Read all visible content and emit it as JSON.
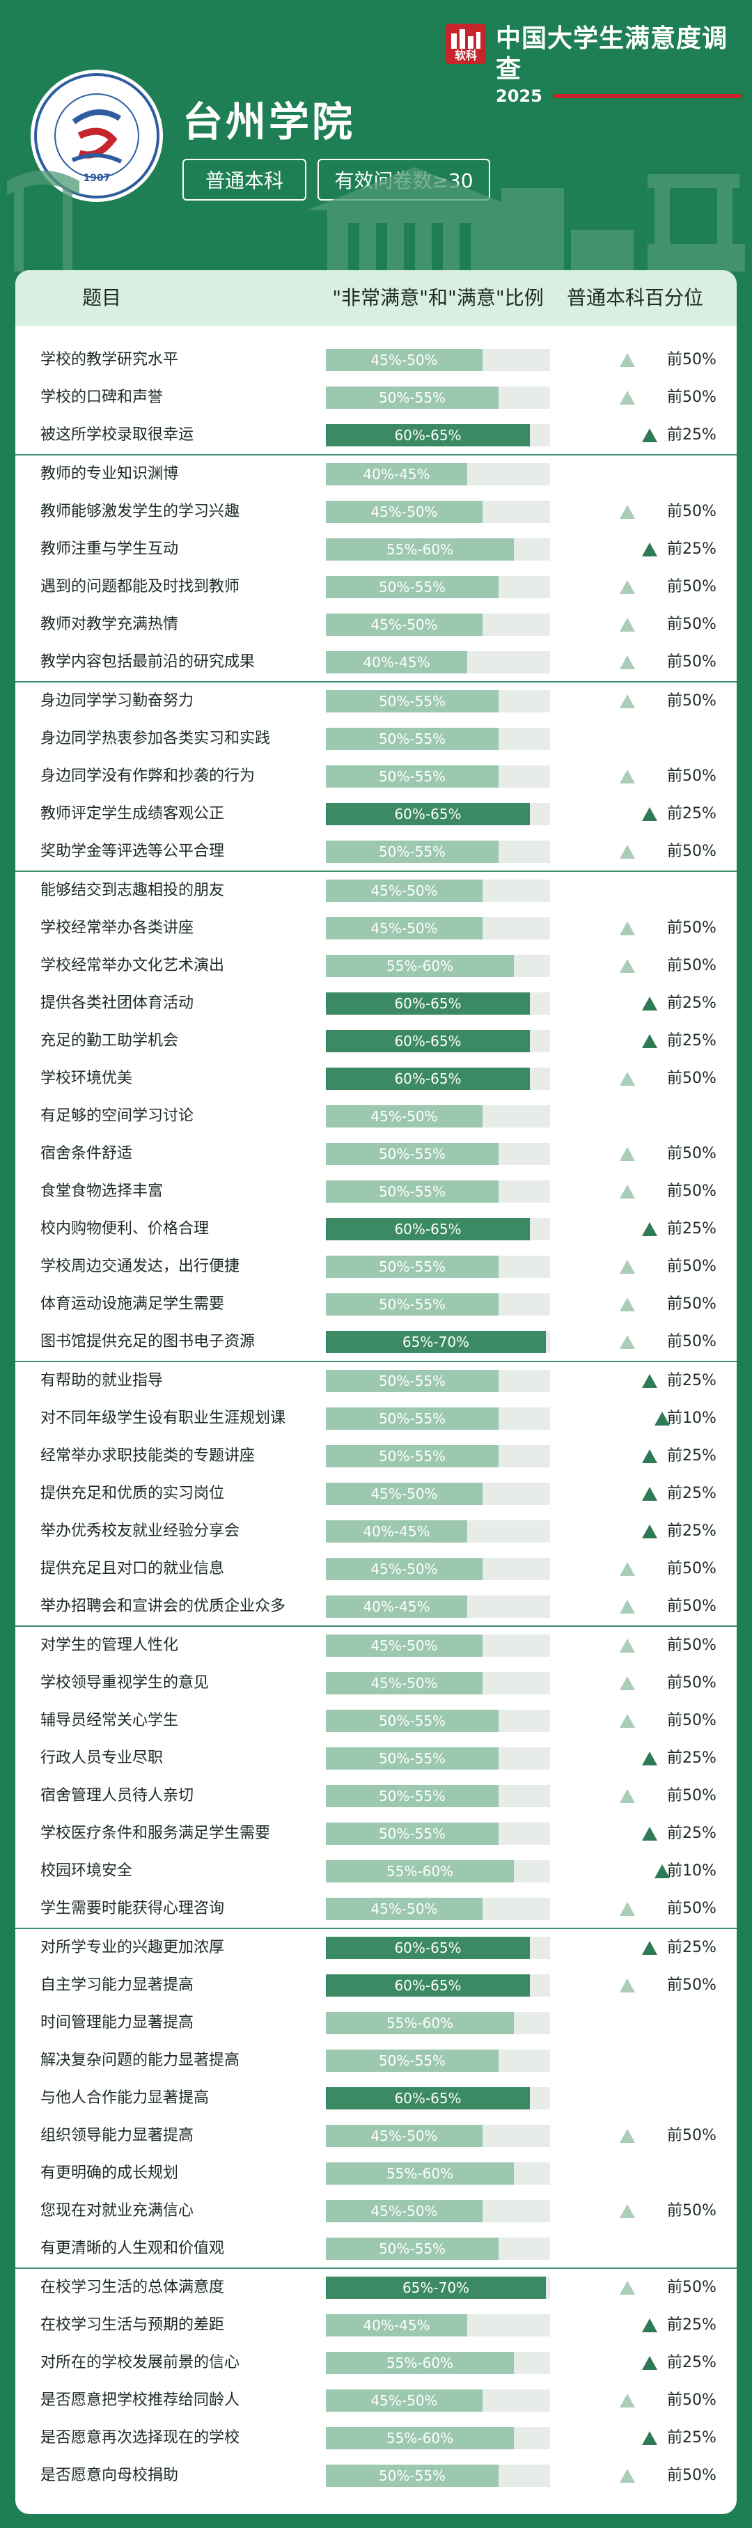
{
  "brand": {
    "title": "中国大学生满意度调查",
    "year": "2025",
    "logo_text": "软科"
  },
  "university": {
    "name": "台州学院",
    "seal_text": "台州学院 TAIZHOU UNIVERSITY",
    "seal_year": "1907"
  },
  "tags": [
    "普通本科",
    "有效问卷数≥30"
  ],
  "table": {
    "headers": [
      "题目",
      "\"非常满意\"和\"满意\"比例",
      "普通本科百分位"
    ],
    "groups": [
      [
        {
          "label": "学校的教学研究水平",
          "ratio": "45%-50%",
          "rank": "前50%"
        },
        {
          "label": "学校的口碑和声誉",
          "ratio": "50%-55%",
          "rank": "前50%"
        },
        {
          "label": "被这所学校录取很幸运",
          "ratio": "60%-65%",
          "rank": "前25%"
        }
      ],
      [
        {
          "label": "教师的专业知识渊博",
          "ratio": "40%-45%",
          "rank": ""
        },
        {
          "label": "教师能够激发学生的学习兴趣",
          "ratio": "45%-50%",
          "rank": "前50%"
        },
        {
          "label": "教师注重与学生互动",
          "ratio": "55%-60%",
          "rank": "前25%"
        },
        {
          "label": "遇到的问题都能及时找到教师",
          "ratio": "50%-55%",
          "rank": "前50%"
        },
        {
          "label": "教师对教学充满热情",
          "ratio": "45%-50%",
          "rank": "前50%"
        },
        {
          "label": "教学内容包括最前沿的研究成果",
          "ratio": "40%-45%",
          "rank": "前50%"
        }
      ],
      [
        {
          "label": "身边同学学习勤奋努力",
          "ratio": "50%-55%",
          "rank": "前50%"
        },
        {
          "label": "身边同学热衷参加各类实习和实践",
          "ratio": "50%-55%",
          "rank": ""
        },
        {
          "label": "身边同学没有作弊和抄袭的行为",
          "ratio": "50%-55%",
          "rank": "前50%"
        },
        {
          "label": "教师评定学生成绩客观公正",
          "ratio": "60%-65%",
          "rank": "前25%"
        },
        {
          "label": "奖助学金等评选等公平合理",
          "ratio": "50%-55%",
          "rank": "前50%"
        }
      ],
      [
        {
          "label": "能够结交到志趣相投的朋友",
          "ratio": "45%-50%",
          "rank": ""
        },
        {
          "label": "学校经常举办各类讲座",
          "ratio": "45%-50%",
          "rank": "前50%"
        },
        {
          "label": "学校经常举办文化艺术演出",
          "ratio": "55%-60%",
          "rank": "前50%"
        },
        {
          "label": "提供各类社团体育活动",
          "ratio": "60%-65%",
          "rank": "前25%"
        },
        {
          "label": "充足的勤工助学机会",
          "ratio": "60%-65%",
          "rank": "前25%"
        },
        {
          "label": "学校环境优美",
          "ratio": "60%-65%",
          "rank": "前50%"
        },
        {
          "label": "有足够的空间学习讨论",
          "ratio": "45%-50%",
          "rank": ""
        },
        {
          "label": "宿舍条件舒适",
          "ratio": "50%-55%",
          "rank": "前50%"
        },
        {
          "label": "食堂食物选择丰富",
          "ratio": "50%-55%",
          "rank": "前50%"
        },
        {
          "label": "校内购物便利、价格合理",
          "ratio": "60%-65%",
          "rank": "前25%"
        },
        {
          "label": "学校周边交通发达，出行便捷",
          "ratio": "50%-55%",
          "rank": "前50%"
        },
        {
          "label": "体育运动设施满足学生需要",
          "ratio": "50%-55%",
          "rank": "前50%"
        },
        {
          "label": "图书馆提供充足的图书电子资源",
          "ratio": "65%-70%",
          "rank": "前50%"
        }
      ],
      [
        {
          "label": "有帮助的就业指导",
          "ratio": "50%-55%",
          "rank": "前25%"
        },
        {
          "label": "对不同年级学生设有职业生涯规划课",
          "ratio": "50%-55%",
          "rank": "前10%"
        },
        {
          "label": "经常举办求职技能类的专题讲座",
          "ratio": "50%-55%",
          "rank": "前25%"
        },
        {
          "label": "提供充足和优质的实习岗位",
          "ratio": "45%-50%",
          "rank": "前25%"
        },
        {
          "label": "举办优秀校友就业经验分享会",
          "ratio": "40%-45%",
          "rank": "前25%"
        },
        {
          "label": "提供充足且对口的就业信息",
          "ratio": "45%-50%",
          "rank": "前50%"
        },
        {
          "label": "举办招聘会和宣讲会的优质企业众多",
          "ratio": "40%-45%",
          "rank": "前50%"
        }
      ],
      [
        {
          "label": "对学生的管理人性化",
          "ratio": "45%-50%",
          "rank": "前50%"
        },
        {
          "label": "学校领导重视学生的意见",
          "ratio": "45%-50%",
          "rank": "前50%"
        },
        {
          "label": "辅导员经常关心学生",
          "ratio": "50%-55%",
          "rank": "前50%"
        },
        {
          "label": "行政人员专业尽职",
          "ratio": "50%-55%",
          "rank": "前25%"
        },
        {
          "label": "宿舍管理人员待人亲切",
          "ratio": "50%-55%",
          "rank": "前50%"
        },
        {
          "label": "学校医疗条件和服务满足学生需要",
          "ratio": "50%-55%",
          "rank": "前25%"
        },
        {
          "label": "校园环境安全",
          "ratio": "55%-60%",
          "rank": "前10%"
        },
        {
          "label": "学生需要时能获得心理咨询",
          "ratio": "45%-50%",
          "rank": "前50%"
        }
      ],
      [
        {
          "label": "对所学专业的兴趣更加浓厚",
          "ratio": "60%-65%",
          "rank": "前25%"
        },
        {
          "label": "自主学习能力显著提高",
          "ratio": "60%-65%",
          "rank": "前50%"
        },
        {
          "label": "时间管理能力显著提高",
          "ratio": "55%-60%",
          "rank": ""
        },
        {
          "label": "解决复杂问题的能力显著提高",
          "ratio": "50%-55%",
          "rank": ""
        },
        {
          "label": "与他人合作能力显著提高",
          "ratio": "60%-65%",
          "rank": ""
        },
        {
          "label": "组织领导能力显著提高",
          "ratio": "45%-50%",
          "rank": "前50%"
        },
        {
          "label": "有更明确的成长规划",
          "ratio": "55%-60%",
          "rank": ""
        },
        {
          "label": "您现在对就业充满信心",
          "ratio": "45%-50%",
          "rank": "前50%"
        },
        {
          "label": "有更清晰的人生观和价值观",
          "ratio": "50%-55%",
          "rank": ""
        }
      ],
      [
        {
          "label": "在校学习生活的总体满意度",
          "ratio": "65%-70%",
          "rank": "前50%"
        },
        {
          "label": "在校学习生活与预期的差距",
          "ratio": "40%-45%",
          "rank": "前25%"
        },
        {
          "label": "对所在的学校发展前景的信心",
          "ratio": "55%-60%",
          "rank": "前25%"
        },
        {
          "label": "是否愿意把学校推荐给同龄人",
          "ratio": "45%-50%",
          "rank": "前50%"
        },
        {
          "label": "是否愿意再次选择现在的学校",
          "ratio": "55%-60%",
          "rank": "前25%"
        },
        {
          "label": "是否愿意向母校捐助",
          "ratio": "50%-55%",
          "rank": "前50%"
        }
      ]
    ]
  },
  "colors": {
    "background": "#1e7f54",
    "header_row": "#d9efe3",
    "bar_light": "#9dc8b0",
    "bar_dark": "#3c8a63",
    "brand_red": "#c7252c"
  }
}
